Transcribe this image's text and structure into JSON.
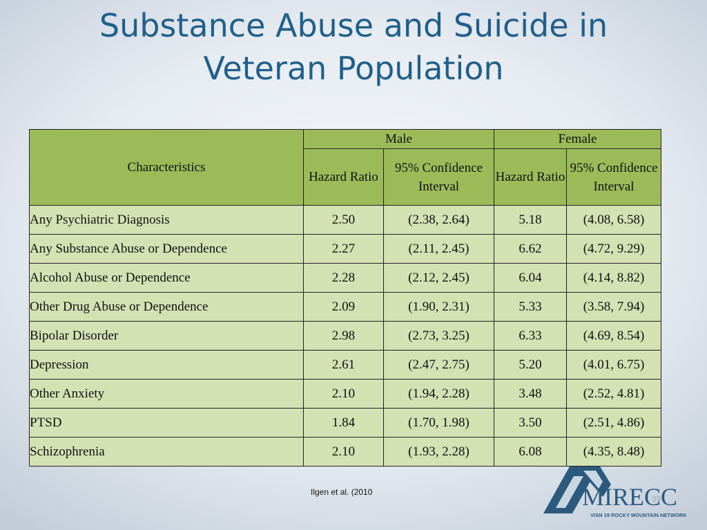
{
  "slide": {
    "title_line1": "Substance Abuse and Suicide in",
    "title_line2": "Veteran Population",
    "source": "Ilgen  et al. (2010",
    "page_number": "39"
  },
  "table": {
    "characteristics_header": "Characteristics",
    "male_header": "Male",
    "female_header": "Female",
    "hazard_ratio_header": "Hazard Ratio",
    "ci_header": "95% Confidence Interval",
    "rows": [
      {
        "label": "Any Psychiatric Diagnosis",
        "indent": 0,
        "male_hr": "2.50",
        "male_ci": "(2.38, 2.64)",
        "female_hr": "5.18",
        "female_ci": "(4.08, 6.58)"
      },
      {
        "label": "Any Substance Abuse or Dependence",
        "indent": 1,
        "male_hr": "2.27",
        "male_ci": "(2.11, 2.45)",
        "female_hr": "6.62",
        "female_ci": "(4.72, 9.29)"
      },
      {
        "label": "Alcohol Abuse or Dependence",
        "indent": 2,
        "male_hr": "2.28",
        "male_ci": "(2.12, 2.45)",
        "female_hr": "6.04",
        "female_ci": "(4.14, 8.82)"
      },
      {
        "label": "Other Drug Abuse or Dependence",
        "indent": 2,
        "male_hr": "2.09",
        "male_ci": "(1.90, 2.31)",
        "female_hr": "5.33",
        "female_ci": "(3.58, 7.94)"
      },
      {
        "label": "Bipolar Disorder",
        "indent": 1,
        "male_hr": "2.98",
        "male_ci": "(2.73, 3.25)",
        "female_hr": "6.33",
        "female_ci": "(4.69, 8.54)"
      },
      {
        "label": "Depression",
        "indent": 1,
        "male_hr": "2.61",
        "male_ci": "(2.47, 2.75)",
        "female_hr": "5.20",
        "female_ci": "(4.01, 6.75)"
      },
      {
        "label": "Other Anxiety",
        "indent": 1,
        "male_hr": "2.10",
        "male_ci": "(1.94, 2.28)",
        "female_hr": "3.48",
        "female_ci": "(2.52, 4.81)"
      },
      {
        "label": "PTSD",
        "indent": 1,
        "male_hr": "1.84",
        "male_ci": "(1.70, 1.98)",
        "female_hr": "3.50",
        "female_ci": "(2.51, 4.86)"
      },
      {
        "label": "Schizophrenia",
        "indent": 1,
        "male_hr": "2.10",
        "male_ci": "(1.93, 2.28)",
        "female_hr": "6.08",
        "female_ci": "(4.35, 8.48)"
      }
    ]
  },
  "logo": {
    "name": "MIRECC",
    "tagline": "VISN 19 ROCKY MOUNTAIN NETWORK",
    "icon": "mountain-m-logo-icon",
    "colors": {
      "primary": "#2b5a7e",
      "light": "#c9d6e2"
    }
  }
}
